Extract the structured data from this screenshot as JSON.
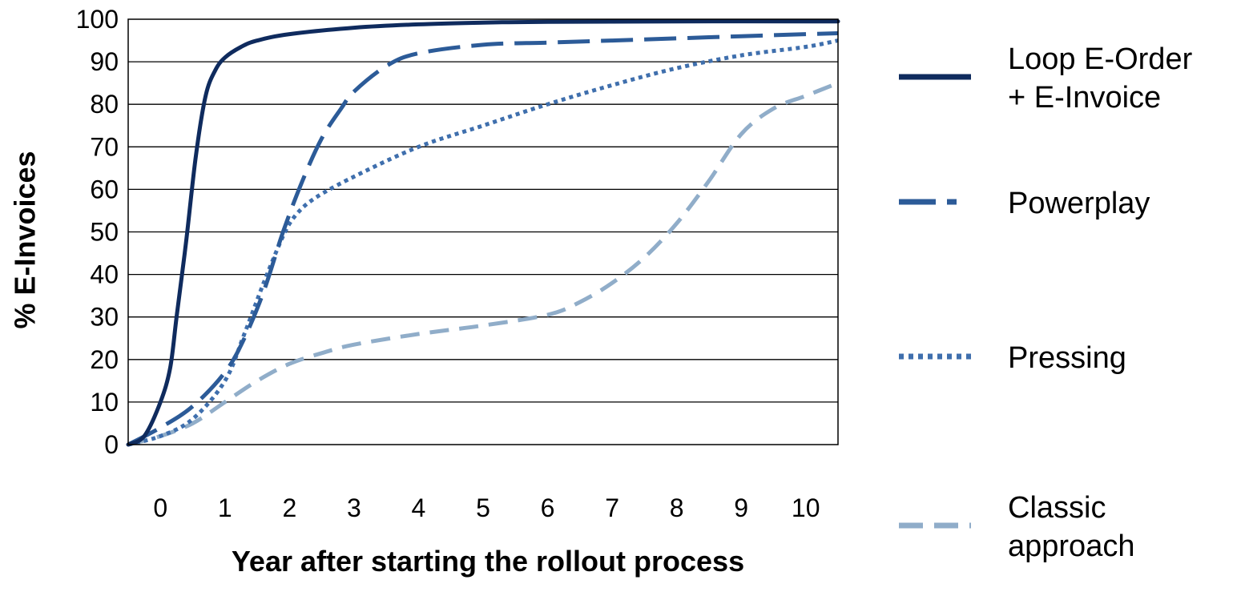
{
  "chart_data": {
    "type": "line",
    "xlabel": "Year after starting the rollout process",
    "ylabel": "% E-Invoices",
    "xlim": [
      -0.5,
      10.5
    ],
    "ylim": [
      0,
      100
    ],
    "x_ticks": [
      "0",
      "1",
      "2",
      "3",
      "4",
      "5",
      "6",
      "7",
      "8",
      "9",
      "10"
    ],
    "y_ticks": [
      "0",
      "10",
      "20",
      "30",
      "40",
      "50",
      "60",
      "70",
      "80",
      "90",
      "100"
    ],
    "grid": "horizontal",
    "legend_position": "right",
    "series": [
      {
        "name": "Loop E-Order + E-Invoice",
        "legend_lines": [
          "Loop E-Order",
          "+ E-Invoice"
        ],
        "color": "#0f2b5e",
        "style": "solid",
        "x": [
          -0.5,
          -0.25,
          0,
          0.15,
          0.25,
          0.4,
          0.55,
          0.7,
          0.85,
          1,
          1.25,
          1.5,
          2,
          3,
          4,
          5,
          6,
          8,
          10.5
        ],
        "y": [
          0,
          2,
          10,
          18,
          30,
          48,
          68,
          82,
          88,
          91,
          93.5,
          95,
          96.5,
          98,
          98.8,
          99.2,
          99.4,
          99.5,
          99.5
        ]
      },
      {
        "name": "Powerplay",
        "legend_lines": [
          "Powerplay"
        ],
        "color": "#2c5b98",
        "style": "long-dash",
        "x": [
          -0.5,
          0,
          0.5,
          1,
          1.3,
          1.6,
          1.9,
          2.2,
          2.5,
          2.8,
          3,
          3.5,
          4,
          5,
          6,
          7,
          8,
          9,
          10,
          10.5
        ],
        "y": [
          0,
          4,
          9,
          17,
          25,
          36,
          50,
          62,
          72,
          79,
          83,
          89,
          92,
          94,
          94.5,
          95,
          95.5,
          96,
          96.5,
          96.7
        ]
      },
      {
        "name": "Pressing",
        "legend_lines": [
          "Pressing"
        ],
        "color": "#3f6fad",
        "style": "dotted",
        "x": [
          -0.5,
          0,
          0.5,
          1,
          1.3,
          1.6,
          1.9,
          2.1,
          2.4,
          3,
          4,
          5,
          6,
          7,
          8,
          9,
          10,
          10.5
        ],
        "y": [
          0,
          2,
          6,
          15,
          26,
          38,
          49,
          54,
          58,
          63,
          70,
          75,
          80,
          84.5,
          88.5,
          91.5,
          93.5,
          95
        ]
      },
      {
        "name": "Classic approach",
        "legend_lines": [
          "Classic",
          "approach"
        ],
        "color": "#90adc9",
        "style": "dashed",
        "x": [
          -0.5,
          0,
          0.5,
          1,
          1.5,
          2,
          2.5,
          3,
          4,
          5,
          6,
          6.5,
          7,
          7.5,
          8,
          8.5,
          9,
          9.5,
          10,
          10.5
        ],
        "y": [
          0,
          2,
          5,
          10,
          15,
          19,
          21.5,
          23.5,
          26,
          28,
          30.5,
          33.5,
          38,
          44,
          52,
          62,
          73,
          79,
          82,
          85
        ]
      }
    ]
  }
}
